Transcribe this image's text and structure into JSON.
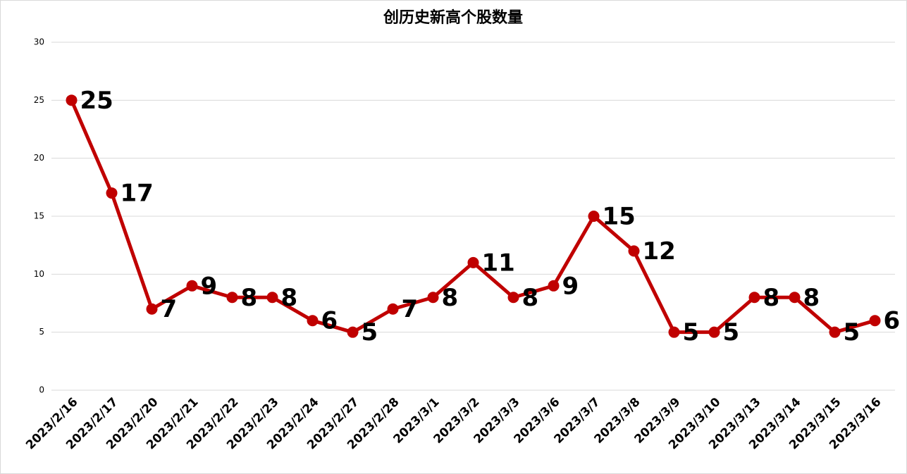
{
  "chart_data": {
    "type": "line",
    "title": "创历史新高个股数量",
    "categories": [
      "2023/2/16",
      "2023/2/17",
      "2023/2/20",
      "2023/2/21",
      "2023/2/22",
      "2023/2/23",
      "2023/2/24",
      "2023/2/27",
      "2023/2/28",
      "2023/3/1",
      "2023/3/2",
      "2023/3/3",
      "2023/3/6",
      "2023/3/7",
      "2023/3/8",
      "2023/3/9",
      "2023/3/10",
      "2023/3/13",
      "2023/3/14",
      "2023/3/15",
      "2023/3/16"
    ],
    "values": [
      25,
      17,
      7,
      9,
      8,
      8,
      6,
      5,
      7,
      8,
      11,
      8,
      9,
      15,
      12,
      5,
      5,
      8,
      8,
      5,
      6
    ],
    "color": "#c00000",
    "ylim": [
      0,
      30
    ],
    "yticks": [
      0,
      5,
      10,
      15,
      20,
      25,
      30
    ],
    "grid": true
  }
}
